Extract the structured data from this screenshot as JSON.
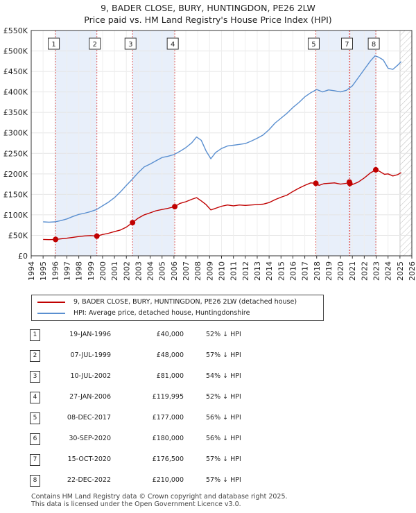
{
  "title_line1": "9, BADER CLOSE, BURY, HUNTINGDON, PE26 2LW",
  "title_line2": "Price paid vs. HM Land Registry's House Price Index (HPI)",
  "colors": {
    "price_paid": "#c00000",
    "hpi": "#5a8fd0",
    "shade": "#e8effa",
    "marker_line": "#e06060"
  },
  "chart_data": {
    "type": "line",
    "title": "Price paid vs. HM Land Registry's House Price Index (HPI)",
    "xlabel": "",
    "ylabel": "",
    "xlim": [
      1994,
      2026
    ],
    "ylim": [
      0,
      550000
    ],
    "y_ticks": [
      {
        "value": 0,
        "label": "£0"
      },
      {
        "value": 50000,
        "label": "£50K"
      },
      {
        "value": 100000,
        "label": "£100K"
      },
      {
        "value": 150000,
        "label": "£150K"
      },
      {
        "value": 200000,
        "label": "£200K"
      },
      {
        "value": 250000,
        "label": "£250K"
      },
      {
        "value": 300000,
        "label": "£300K"
      },
      {
        "value": 350000,
        "label": "£350K"
      },
      {
        "value": 400000,
        "label": "£400K"
      },
      {
        "value": 450000,
        "label": "£450K"
      },
      {
        "value": 500000,
        "label": "£500K"
      },
      {
        "value": 550000,
        "label": "£550K"
      }
    ],
    "x_ticks": [
      "1994",
      "1995",
      "1996",
      "1997",
      "1998",
      "1999",
      "2000",
      "2001",
      "2002",
      "2003",
      "2004",
      "2005",
      "2006",
      "2007",
      "2008",
      "2009",
      "2010",
      "2011",
      "2012",
      "2013",
      "2014",
      "2015",
      "2016",
      "2017",
      "2018",
      "2019",
      "2020",
      "2021",
      "2022",
      "2023",
      "2024",
      "2025",
      "2026"
    ],
    "shaded_ranges": [
      [
        1996.05,
        1999.52
      ],
      [
        2002.52,
        2006.07
      ],
      [
        2017.93,
        2020.75
      ],
      [
        2020.79,
        2022.97
      ]
    ],
    "future_hatch_from": 2025.0,
    "series": [
      {
        "name": "9, BADER CLOSE, BURY, HUNTINGDON, PE26 2LW (detached house)",
        "color": "#c00000",
        "x": [
          1995.0,
          1995.5,
          1996.05,
          1996.5,
          1997.0,
          1997.5,
          1998.0,
          1998.5,
          1999.0,
          1999.52,
          2000.0,
          2000.5,
          2001.0,
          2001.5,
          2002.0,
          2002.52,
          2003.0,
          2003.5,
          2004.0,
          2004.5,
          2005.0,
          2005.5,
          2006.07,
          2006.5,
          2007.0,
          2007.5,
          2007.9,
          2008.3,
          2008.7,
          2009.1,
          2009.5,
          2010.0,
          2010.5,
          2011.0,
          2011.5,
          2012.0,
          2012.5,
          2013.0,
          2013.5,
          2014.0,
          2014.5,
          2015.0,
          2015.5,
          2016.0,
          2016.5,
          2017.0,
          2017.5,
          2017.93,
          2018.2,
          2018.6,
          2019.0,
          2019.5,
          2020.0,
          2020.5,
          2020.75,
          2020.79,
          2021.0,
          2021.5,
          2022.0,
          2022.5,
          2022.97,
          2023.3,
          2023.7,
          2024.0,
          2024.4,
          2024.8,
          2025.1
        ],
        "y": [
          40000,
          39500,
          40000,
          41500,
          43000,
          45000,
          47000,
          48500,
          49500,
          48000,
          52000,
          55000,
          59000,
          63000,
          70000,
          81000,
          92000,
          100000,
          105000,
          110000,
          113000,
          116000,
          119995,
          128000,
          132000,
          138000,
          142000,
          134000,
          125000,
          112000,
          116000,
          121000,
          124000,
          122000,
          124000,
          123000,
          124000,
          125000,
          126000,
          130000,
          137000,
          143000,
          148000,
          157000,
          165000,
          172000,
          178000,
          177000,
          172000,
          176000,
          177000,
          178000,
          175000,
          177000,
          180000,
          176500,
          174000,
          180000,
          190000,
          202000,
          210000,
          206000,
          199000,
          200000,
          195000,
          198000,
          203000
        ]
      },
      {
        "name": "HPI: Average price, detached house, Huntingdonshire",
        "color": "#5a8fd0",
        "x": [
          1995.0,
          1995.5,
          1996.0,
          1996.5,
          1997.0,
          1997.5,
          1998.0,
          1998.5,
          1999.0,
          1999.5,
          2000.0,
          2000.5,
          2001.0,
          2001.5,
          2002.0,
          2002.5,
          2003.0,
          2003.5,
          2004.0,
          2004.5,
          2005.0,
          2005.5,
          2006.0,
          2006.5,
          2007.0,
          2007.5,
          2007.9,
          2008.3,
          2008.7,
          2009.1,
          2009.5,
          2010.0,
          2010.5,
          2011.0,
          2011.5,
          2012.0,
          2012.5,
          2013.0,
          2013.5,
          2014.0,
          2014.5,
          2015.0,
          2015.5,
          2016.0,
          2016.5,
          2017.0,
          2017.5,
          2018.0,
          2018.5,
          2019.0,
          2019.5,
          2020.0,
          2020.5,
          2021.0,
          2021.5,
          2022.0,
          2022.5,
          2022.9,
          2023.2,
          2023.6,
          2024.0,
          2024.4,
          2024.8,
          2025.1
        ],
        "y": [
          83000,
          82000,
          83000,
          86000,
          90000,
          96000,
          101000,
          104000,
          108000,
          113000,
          122000,
          131000,
          142000,
          156000,
          172000,
          187000,
          203000,
          217000,
          224000,
          232000,
          240000,
          243000,
          247000,
          255000,
          264000,
          276000,
          290000,
          282000,
          256000,
          237000,
          252000,
          262000,
          268000,
          270000,
          272000,
          274000,
          280000,
          287000,
          295000,
          308000,
          324000,
          336000,
          348000,
          362000,
          374000,
          388000,
          398000,
          406000,
          400000,
          405000,
          403000,
          400000,
          404000,
          415000,
          435000,
          455000,
          475000,
          488000,
          485000,
          478000,
          458000,
          455000,
          465000,
          474000
        ]
      }
    ],
    "sales": [
      {
        "id": "1",
        "x": 1996.05,
        "y": 40000
      },
      {
        "id": "2",
        "x": 1999.52,
        "y": 48000
      },
      {
        "id": "3",
        "x": 2002.52,
        "y": 81000
      },
      {
        "id": "4",
        "x": 2006.07,
        "y": 119995
      },
      {
        "id": "5",
        "x": 2017.93,
        "y": 177000
      },
      {
        "id": "6",
        "x": 2020.75,
        "y": 180000
      },
      {
        "id": "7",
        "x": 2020.79,
        "y": 176500
      },
      {
        "id": "8",
        "x": 2022.97,
        "y": 210000
      }
    ],
    "chart_labels": [
      {
        "id": "1",
        "x": 1995.9
      },
      {
        "id": "2",
        "x": 1999.35
      },
      {
        "id": "3",
        "x": 2002.35
      },
      {
        "id": "4",
        "x": 2005.9
      },
      {
        "id": "5",
        "x": 2017.75
      },
      {
        "id": "7",
        "x": 2020.55
      },
      {
        "id": "8",
        "x": 2022.8
      }
    ]
  },
  "legend": {
    "price_paid": "9, BADER CLOSE, BURY, HUNTINGDON, PE26 2LW (detached house)",
    "hpi": "HPI: Average price, detached house, Huntingdonshire"
  },
  "table": [
    {
      "id": "1",
      "date": "19-JAN-1996",
      "price": "£40,000",
      "hpi": "52% ↓ HPI"
    },
    {
      "id": "2",
      "date": "07-JUL-1999",
      "price": "£48,000",
      "hpi": "57% ↓ HPI"
    },
    {
      "id": "3",
      "date": "10-JUL-2002",
      "price": "£81,000",
      "hpi": "54% ↓ HPI"
    },
    {
      "id": "4",
      "date": "27-JAN-2006",
      "price": "£119,995",
      "hpi": "52% ↓ HPI"
    },
    {
      "id": "5",
      "date": "08-DEC-2017",
      "price": "£177,000",
      "hpi": "56% ↓ HPI"
    },
    {
      "id": "6",
      "date": "30-SEP-2020",
      "price": "£180,000",
      "hpi": "56% ↓ HPI"
    },
    {
      "id": "7",
      "date": "15-OCT-2020",
      "price": "£176,500",
      "hpi": "57% ↓ HPI"
    },
    {
      "id": "8",
      "date": "22-DEC-2022",
      "price": "£210,000",
      "hpi": "57% ↓ HPI"
    }
  ],
  "footer_line1": "Contains HM Land Registry data © Crown copyright and database right 2025.",
  "footer_line2": "This data is licensed under the Open Government Licence v3.0."
}
